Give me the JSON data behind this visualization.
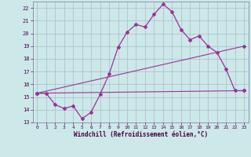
{
  "xlabel": "Windchill (Refroidissement éolien,°C)",
  "bg_color": "#cce8e8",
  "grid_color": "#aabbcc",
  "line_color": "#993399",
  "xlim": [
    -0.5,
    23.5
  ],
  "ylim": [
    13,
    22.5
  ],
  "yticks": [
    13,
    14,
    15,
    16,
    17,
    18,
    19,
    20,
    21,
    22
  ],
  "xticks": [
    0,
    1,
    2,
    3,
    4,
    5,
    6,
    7,
    8,
    9,
    10,
    11,
    12,
    13,
    14,
    15,
    16,
    17,
    18,
    19,
    20,
    21,
    22,
    23
  ],
  "line1_x": [
    0,
    1,
    2,
    3,
    4,
    5,
    6,
    7,
    8,
    9,
    10,
    11,
    12,
    13,
    14,
    15,
    16,
    17,
    18,
    19,
    20,
    21,
    22,
    23
  ],
  "line1_y": [
    15.3,
    15.3,
    14.4,
    14.1,
    14.3,
    13.3,
    13.8,
    15.2,
    16.8,
    18.9,
    20.1,
    20.7,
    20.5,
    21.5,
    22.3,
    21.7,
    20.3,
    19.5,
    19.8,
    19.0,
    18.5,
    17.2,
    15.5,
    15.5
  ],
  "line2_x": [
    0,
    23
  ],
  "line2_y": [
    15.3,
    15.5
  ],
  "line3_x": [
    0,
    23
  ],
  "line3_y": [
    15.3,
    19.0
  ]
}
